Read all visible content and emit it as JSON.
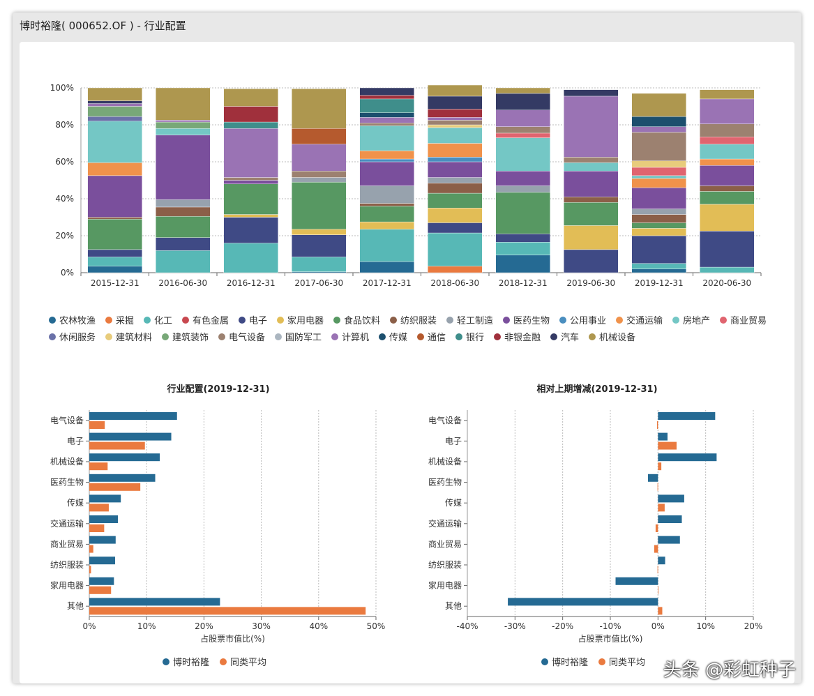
{
  "window": {
    "title": "博时裕隆( 000652.OF ) - 行业配置"
  },
  "colors": {
    "blue": "#256a93",
    "orange": "#ea7a3f"
  },
  "chart_data": [
    {
      "type": "stacked-bar",
      "title": "",
      "categories": [
        "2015-12-31",
        "2016-06-30",
        "2016-12-31",
        "2017-06-30",
        "2017-12-31",
        "2018-06-30",
        "2018-12-31",
        "2019-06-30",
        "2019-12-31",
        "2020-06-30"
      ],
      "yticks": [
        "0%",
        "20%",
        "40%",
        "60%",
        "80%",
        "100%"
      ],
      "ylim": [
        0,
        100
      ],
      "series": [
        {
          "name": "农林牧渔",
          "color": "#256a93",
          "values": [
            3.5,
            0,
            0,
            0.5,
            6,
            0,
            9.5,
            0,
            2,
            0
          ]
        },
        {
          "name": "采掘",
          "color": "#ea7a3f",
          "values": [
            0,
            0,
            0,
            0,
            0,
            3.5,
            0,
            0,
            0,
            0
          ]
        },
        {
          "name": "化工",
          "color": "#57b8b6",
          "values": [
            5,
            12,
            16,
            8,
            17.5,
            18,
            7,
            0,
            3,
            3
          ]
        },
        {
          "name": "有色金属",
          "color": "#c8484f",
          "values": [
            0,
            0,
            0,
            0,
            0,
            0,
            0,
            0,
            0,
            0
          ]
        },
        {
          "name": "电子",
          "color": "#3f4a85",
          "values": [
            4,
            7,
            14,
            12,
            0,
            5.5,
            4.5,
            12.5,
            15,
            19.5
          ]
        },
        {
          "name": "家用电器",
          "color": "#e2bd56",
          "values": [
            0,
            0,
            1.5,
            3,
            4,
            8,
            0,
            13,
            4,
            14.5
          ]
        },
        {
          "name": "食品饮料",
          "color": "#579862",
          "values": [
            16.5,
            11.5,
            16.5,
            25.5,
            8.5,
            8,
            22.5,
            12.5,
            3,
            7
          ]
        },
        {
          "name": "纺织服装",
          "color": "#8b5f48",
          "values": [
            1,
            5,
            0,
            0,
            1.5,
            5.5,
            0,
            3,
            4.5,
            3
          ]
        },
        {
          "name": "轻工制造",
          "color": "#97a2ad",
          "values": [
            0,
            4,
            0,
            2.5,
            9.5,
            3,
            3.5,
            0,
            3,
            0
          ]
        },
        {
          "name": "医药生物",
          "color": "#7a4f9c",
          "values": [
            22.5,
            35,
            2,
            0,
            13,
            8.5,
            8,
            14,
            11.5,
            11
          ]
        },
        {
          "name": "公用事业",
          "color": "#4a8ebf",
          "values": [
            0,
            0,
            0,
            0,
            1.5,
            2.5,
            0,
            0,
            0,
            0
          ]
        },
        {
          "name": "交通运输",
          "color": "#f0924b",
          "values": [
            7,
            0,
            0,
            0,
            4.5,
            7.5,
            0,
            0,
            5,
            3.5
          ]
        },
        {
          "name": "房地产",
          "color": "#74c7c5",
          "values": [
            22.5,
            3.5,
            0,
            0,
            13.5,
            8.5,
            18,
            4.5,
            1.5,
            8
          ]
        },
        {
          "name": "商业贸易",
          "color": "#e0646f",
          "values": [
            0,
            0,
            0,
            0,
            0,
            0,
            2.5,
            0,
            4.5,
            4
          ]
        },
        {
          "name": "休闲服务",
          "color": "#6a71a8",
          "values": [
            2.5,
            0,
            0,
            0,
            0,
            0,
            0,
            0,
            0,
            0
          ]
        },
        {
          "name": "建筑材料",
          "color": "#e8cc7c",
          "values": [
            0,
            0,
            0,
            0,
            0,
            1.5,
            0,
            0,
            3.5,
            0
          ]
        },
        {
          "name": "建筑装饰",
          "color": "#78a878",
          "values": [
            5.5,
            3.5,
            0,
            0,
            0,
            0,
            0,
            0,
            0,
            0
          ]
        },
        {
          "name": "电气设备",
          "color": "#9c8170",
          "values": [
            0,
            0,
            1.5,
            3.5,
            1.5,
            2.5,
            3.5,
            3,
            15.5,
            7
          ]
        },
        {
          "name": "国防军工",
          "color": "#abb6c0",
          "values": [
            0,
            0,
            0,
            0,
            0,
            0,
            0,
            0,
            0,
            0
          ]
        },
        {
          "name": "计算机",
          "color": "#9a73b4",
          "values": [
            1.5,
            1,
            26.5,
            14.5,
            3,
            1.5,
            9,
            33,
            3,
            13.5
          ]
        },
        {
          "name": "传媒",
          "color": "#1c4f6e",
          "values": [
            0,
            0,
            0,
            0,
            2.5,
            0,
            0,
            0,
            5.5,
            0
          ]
        },
        {
          "name": "通信",
          "color": "#b55a2e",
          "values": [
            0,
            0,
            0,
            8.5,
            0,
            0,
            0,
            0,
            0,
            0
          ]
        },
        {
          "name": "银行",
          "color": "#3f8e8b",
          "values": [
            0,
            0,
            3.5,
            0,
            7.5,
            0,
            0,
            0,
            0,
            0
          ]
        },
        {
          "name": "非银金融",
          "color": "#a0303c",
          "values": [
            0,
            0,
            8.5,
            0,
            2,
            4.5,
            0,
            0,
            0,
            0
          ]
        },
        {
          "name": "汽车",
          "color": "#343a64",
          "values": [
            1.5,
            0,
            0,
            0,
            4,
            7,
            9,
            3.5,
            0,
            0
          ]
        },
        {
          "name": "机械设备",
          "color": "#ae974f",
          "values": [
            7,
            17.5,
            9.5,
            21.5,
            0,
            6,
            3,
            0,
            12.5,
            5
          ]
        }
      ]
    },
    {
      "type": "bar",
      "orientation": "horizontal",
      "title": "行业配置(2019-12-31)",
      "xlabel": "占股票市值比(%)",
      "categories": [
        "电气设备",
        "电子",
        "机械设备",
        "医药生物",
        "传媒",
        "交通运输",
        "商业贸易",
        "纺织服装",
        "家用电器",
        "其他"
      ],
      "xlim": [
        0,
        50
      ],
      "xticks": [
        "0%",
        "10%",
        "20%",
        "30%",
        "40%",
        "50%"
      ],
      "series": [
        {
          "name": "博时裕隆",
          "values": [
            15.3,
            14.3,
            12.3,
            11.5,
            5.5,
            5,
            4.6,
            4.5,
            4.3,
            22.8
          ]
        },
        {
          "name": "同类平均",
          "values": [
            2.7,
            9.7,
            3.2,
            8.9,
            3.4,
            2.6,
            0.7,
            0.3,
            3.8,
            48.2
          ]
        }
      ]
    },
    {
      "type": "bar",
      "orientation": "horizontal",
      "title": "相对上期增减(2019-12-31)",
      "xlabel": "占股票市值比(%)",
      "categories": [
        "电气设备",
        "电子",
        "机械设备",
        "医药生物",
        "传媒",
        "交通运输",
        "商业贸易",
        "纺织服装",
        "家用电器",
        "其他"
      ],
      "xlim": [
        -40,
        20
      ],
      "xticks": [
        "-40%",
        "-30%",
        "-20%",
        "-10%",
        "0%",
        "10%",
        "20%"
      ],
      "series": [
        {
          "name": "博时裕隆",
          "values": [
            12,
            2,
            12.3,
            -2.1,
            5.5,
            5,
            4.6,
            1.5,
            -8.9,
            -31.5
          ]
        },
        {
          "name": "同类平均",
          "values": [
            -0.2,
            3.9,
            0.7,
            -0.1,
            1.4,
            -0.5,
            -0.8,
            -0.1,
            0,
            0.9
          ]
        }
      ]
    }
  ],
  "watermark": "头条 @彩虹种子"
}
